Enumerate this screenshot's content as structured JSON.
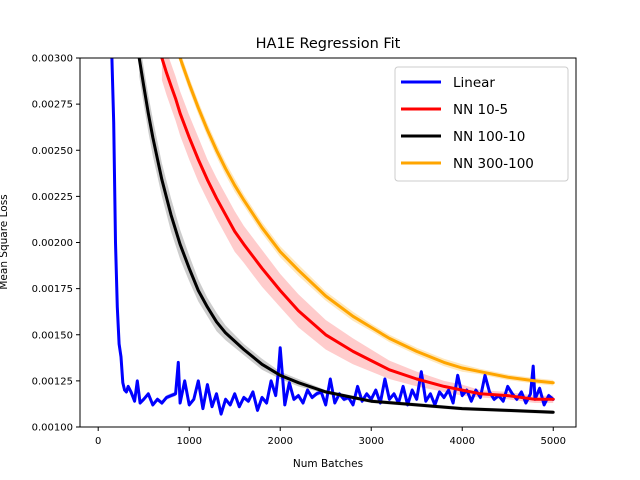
{
  "chart_data": {
    "type": "line",
    "title": "HA1E Regression Fit",
    "xlabel": "Num Batches",
    "ylabel": "Mean Square Loss",
    "xlim": [
      -200,
      5250
    ],
    "ylim": [
      0.001,
      0.003
    ],
    "xticks": [
      0,
      1000,
      2000,
      3000,
      4000,
      5000
    ],
    "xtick_labels": [
      "0",
      "1000",
      "2000",
      "3000",
      "4000",
      "5000"
    ],
    "yticks": [
      0.001,
      0.00125,
      0.0015,
      0.00175,
      0.002,
      0.00225,
      0.0025,
      0.00275,
      0.003
    ],
    "ytick_labels": [
      "0.00100",
      "0.00125",
      "0.00150",
      "0.00175",
      "0.00200",
      "0.00225",
      "0.00250",
      "0.00275",
      "0.00300"
    ],
    "grid": false,
    "legend_position": "top-right",
    "series": [
      {
        "name": "Linear",
        "color": "#0000ff",
        "band_width": 1.2e-05,
        "x": [
          150,
          170,
          190,
          210,
          230,
          250,
          270,
          290,
          310,
          330,
          360,
          400,
          430,
          460,
          500,
          550,
          600,
          650,
          700,
          750,
          800,
          850,
          880,
          900,
          950,
          1000,
          1050,
          1100,
          1150,
          1200,
          1250,
          1300,
          1350,
          1400,
          1450,
          1500,
          1550,
          1600,
          1650,
          1700,
          1750,
          1800,
          1850,
          1900,
          1950,
          1980,
          2000,
          2050,
          2100,
          2150,
          2200,
          2250,
          2300,
          2350,
          2400,
          2450,
          2500,
          2550,
          2600,
          2650,
          2700,
          2750,
          2800,
          2850,
          2900,
          2950,
          3000,
          3050,
          3100,
          3150,
          3200,
          3250,
          3300,
          3350,
          3400,
          3450,
          3500,
          3550,
          3600,
          3650,
          3700,
          3750,
          3800,
          3850,
          3900,
          3950,
          4000,
          4050,
          4100,
          4150,
          4200,
          4250,
          4300,
          4350,
          4400,
          4450,
          4500,
          4550,
          4600,
          4650,
          4700,
          4750,
          4780,
          4800,
          4850,
          4900,
          4950,
          5000
        ],
        "y": [
          0.003,
          0.00265,
          0.002,
          0.00165,
          0.00145,
          0.00138,
          0.00124,
          0.0012,
          0.00119,
          0.00122,
          0.00119,
          0.00114,
          0.00125,
          0.00113,
          0.00115,
          0.00118,
          0.00112,
          0.00115,
          0.00113,
          0.00116,
          0.00117,
          0.00118,
          0.00135,
          0.00113,
          0.00125,
          0.00112,
          0.00115,
          0.00125,
          0.0011,
          0.00123,
          0.00111,
          0.00118,
          0.00107,
          0.00115,
          0.00112,
          0.00118,
          0.00111,
          0.00116,
          0.00114,
          0.00119,
          0.00109,
          0.00116,
          0.00113,
          0.00125,
          0.00117,
          0.0013,
          0.00143,
          0.00112,
          0.00124,
          0.00115,
          0.00117,
          0.00113,
          0.0012,
          0.00116,
          0.00118,
          0.00119,
          0.00112,
          0.00126,
          0.00113,
          0.00118,
          0.00115,
          0.00116,
          0.00112,
          0.00122,
          0.00114,
          0.00118,
          0.00115,
          0.0012,
          0.00113,
          0.00126,
          0.00115,
          0.00118,
          0.00113,
          0.00122,
          0.00112,
          0.0012,
          0.00115,
          0.0013,
          0.00114,
          0.00118,
          0.00112,
          0.00119,
          0.00116,
          0.0012,
          0.00113,
          0.00128,
          0.00117,
          0.0012,
          0.00114,
          0.0012,
          0.00116,
          0.00128,
          0.00119,
          0.00115,
          0.00117,
          0.00114,
          0.00122,
          0.00118,
          0.00115,
          0.00119,
          0.00113,
          0.00118,
          0.00133,
          0.00115,
          0.00121,
          0.00112,
          0.00117,
          0.00115
        ]
      },
      {
        "name": "NN 10-5",
        "color": "#ff0000",
        "band_color": "#ff9999",
        "x": [
          700,
          750,
          800,
          850,
          900,
          1000,
          1100,
          1200,
          1300,
          1400,
          1500,
          1600,
          1800,
          2000,
          2200,
          2500,
          2800,
          3000,
          3200,
          3500,
          3800,
          4000,
          4200,
          4500,
          4800,
          5000
        ],
        "y": [
          0.003,
          0.00292,
          0.00285,
          0.00278,
          0.0027,
          0.00257,
          0.00245,
          0.00234,
          0.00224,
          0.00215,
          0.00206,
          0.00199,
          0.00186,
          0.00174,
          0.00163,
          0.0015,
          0.00141,
          0.00136,
          0.00131,
          0.00126,
          0.00122,
          0.0012,
          0.00118,
          0.00117,
          0.00115,
          0.00115
        ],
        "band": [
          0.00012,
          0.00012,
          0.00012,
          0.00012,
          0.00012,
          0.00012,
          0.00012,
          0.00011,
          0.00011,
          0.00011,
          0.00011,
          0.0001,
          0.0001,
          9e-05,
          9e-05,
          8e-05,
          7e-05,
          6e-05,
          5e-05,
          4e-05,
          3e-05,
          3e-05,
          2e-05,
          2e-05,
          2e-05,
          2e-05
        ]
      },
      {
        "name": "NN 100-10",
        "color": "#000000",
        "band_color": "#999999",
        "x": [
          450,
          500,
          550,
          600,
          700,
          800,
          900,
          1000,
          1100,
          1200,
          1300,
          1400,
          1600,
          1800,
          2000,
          2200,
          2500,
          2800,
          3000,
          3500,
          4000,
          4500,
          5000
        ],
        "y": [
          0.003,
          0.00285,
          0.0027,
          0.00257,
          0.00234,
          0.00215,
          0.00199,
          0.00186,
          0.00174,
          0.00165,
          0.00157,
          0.00151,
          0.00142,
          0.00134,
          0.00128,
          0.00124,
          0.00119,
          0.00116,
          0.00114,
          0.00112,
          0.0011,
          0.00109,
          0.00108
        ],
        "band": [
          0.0001,
          0.0001,
          0.0001,
          0.0001,
          9e-05,
          9e-05,
          8e-05,
          7e-05,
          6e-05,
          5e-05,
          5e-05,
          4e-05,
          3e-05,
          3e-05,
          2e-05,
          2e-05,
          1e-05,
          1e-05,
          1e-05,
          1e-05,
          1e-05,
          1e-05,
          1e-05
        ]
      },
      {
        "name": "NN 300-100",
        "color": "#ffa500",
        "band_color": "#ffd27a",
        "x": [
          900,
          1000,
          1100,
          1200,
          1300,
          1400,
          1500,
          1600,
          1800,
          2000,
          2200,
          2500,
          2800,
          3000,
          3200,
          3500,
          3800,
          4000,
          4200,
          4500,
          4800,
          5000
        ],
        "y": [
          0.003,
          0.00286,
          0.00273,
          0.00261,
          0.0025,
          0.0024,
          0.00231,
          0.00223,
          0.00208,
          0.00195,
          0.00185,
          0.00171,
          0.0016,
          0.00154,
          0.00148,
          0.00141,
          0.00135,
          0.00132,
          0.0013,
          0.00127,
          0.00125,
          0.00124
        ],
        "band": [
          3.5e-05,
          3.5e-05,
          3.5e-05,
          3.5e-05,
          3.5e-05,
          3.5e-05,
          3.5e-05,
          3e-05,
          3e-05,
          3e-05,
          3e-05,
          2.5e-05,
          2.5e-05,
          2e-05,
          2e-05,
          2e-05,
          2e-05,
          2e-05,
          1.5e-05,
          1.5e-05,
          1.5e-05,
          1.5e-05
        ]
      }
    ]
  }
}
